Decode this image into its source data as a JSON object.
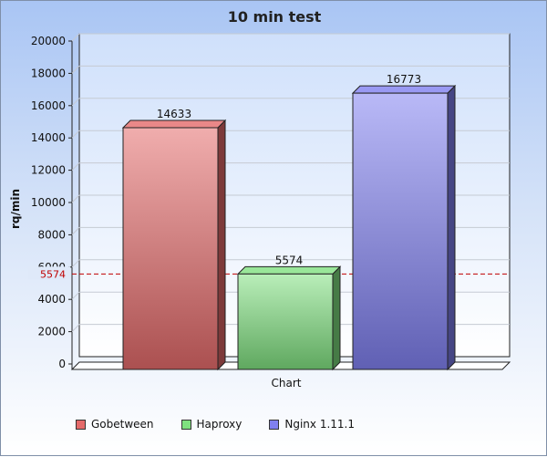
{
  "chart_data": {
    "type": "bar",
    "title": "10 min test",
    "ylabel": "rq/min",
    "xlabel": "Chart",
    "ylim": [
      0,
      20000
    ],
    "yticks": [
      0,
      2000,
      4000,
      6000,
      8000,
      10000,
      12000,
      14000,
      16000,
      18000,
      20000
    ],
    "grid": true,
    "legend_position": "bottom",
    "reference_line": {
      "value": 5574,
      "label": "5574",
      "color": "#c00000",
      "style": "dashed"
    },
    "series": [
      {
        "name": "Gobetween",
        "value": 14633,
        "color": "#e46a6a"
      },
      {
        "name": "Haproxy",
        "value": 5574,
        "color": "#7fe07f"
      },
      {
        "name": "Nginx 1.11.1",
        "value": 16773,
        "color": "#8080f0"
      }
    ]
  }
}
